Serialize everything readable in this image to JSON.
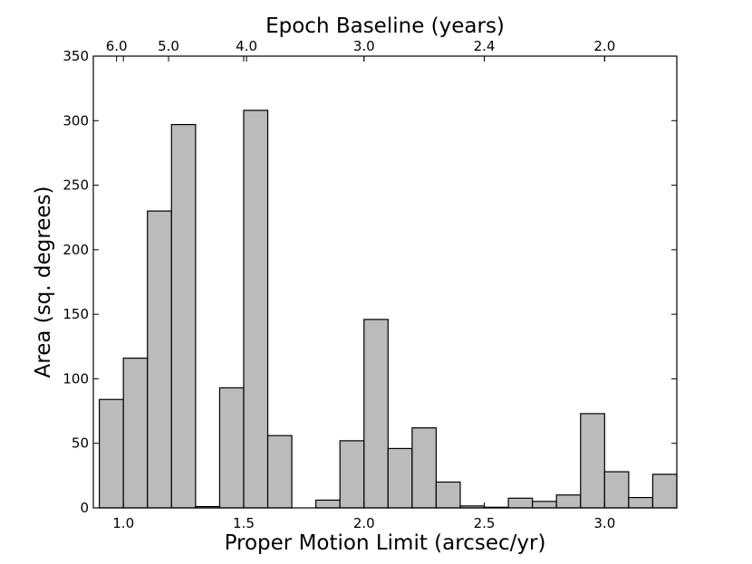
{
  "chart_data": {
    "type": "bar",
    "title": "",
    "xlabel": "Proper Motion Limit (arcsec/yr)",
    "ylabel": "Area (sq. degrees)",
    "top_xlabel": "Epoch Baseline (years)",
    "xlim": [
      0.875,
      3.3
    ],
    "ylim": [
      0,
      350
    ],
    "x_ticks": [
      1.0,
      1.5,
      2.0,
      2.5,
      3.0
    ],
    "x_tick_labels": [
      "1.0",
      "1.5",
      "2.0",
      "2.5",
      "3.0"
    ],
    "y_ticks": [
      0,
      50,
      100,
      150,
      200,
      250,
      300,
      350
    ],
    "y_tick_labels": [
      "0",
      "50",
      "100",
      "150",
      "200",
      "250",
      "300",
      "350"
    ],
    "top_ticks": [
      {
        "label": "6.0",
        "x": 0.9716
      },
      {
        "label": "5.0",
        "x": 1.1876
      },
      {
        "label": "4.0",
        "x": 1.5117
      },
      {
        "label": "3.0",
        "x": 2.0
      },
      {
        "label": "2.4",
        "x": 2.5
      },
      {
        "label": "2.0",
        "x": 3.0
      }
    ],
    "bin_width": 0.1,
    "bins": [
      {
        "x0": 0.9,
        "value": 84
      },
      {
        "x0": 1.0,
        "value": 116
      },
      {
        "x0": 1.1,
        "value": 230
      },
      {
        "x0": 1.2,
        "value": 297
      },
      {
        "x0": 1.3,
        "value": 1
      },
      {
        "x0": 1.4,
        "value": 93
      },
      {
        "x0": 1.5,
        "value": 308
      },
      {
        "x0": 1.6,
        "value": 56
      },
      {
        "x0": 1.8,
        "value": 6
      },
      {
        "x0": 1.9,
        "value": 52
      },
      {
        "x0": 2.0,
        "value": 146
      },
      {
        "x0": 2.1,
        "value": 46
      },
      {
        "x0": 2.2,
        "value": 62
      },
      {
        "x0": 2.3,
        "value": 20
      },
      {
        "x0": 2.4,
        "value": 1.5
      },
      {
        "x0": 2.5,
        "value": 0.5
      },
      {
        "x0": 2.6,
        "value": 7.5
      },
      {
        "x0": 2.7,
        "value": 5
      },
      {
        "x0": 2.8,
        "value": 10
      },
      {
        "x0": 2.9,
        "value": 73
      },
      {
        "x0": 3.0,
        "value": 28
      },
      {
        "x0": 3.1,
        "value": 8
      },
      {
        "x0": 3.2,
        "value": 26
      }
    ],
    "bar_color": "#bbbbbb",
    "edge_color": "#000000",
    "grid": false,
    "legend": "none"
  }
}
